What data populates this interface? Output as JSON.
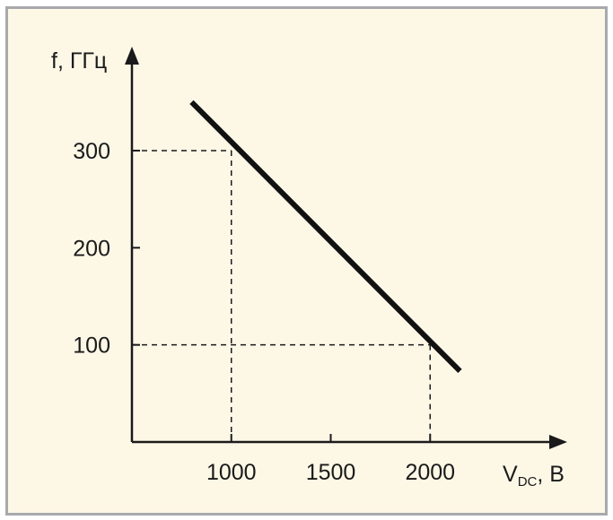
{
  "chart_data": {
    "type": "line",
    "title": "",
    "xlabel_main": "V",
    "xlabel_sub": "DC",
    "xlabel_unit": ", В",
    "ylabel": "f, ГГц",
    "x_ticks": [
      1000,
      1500,
      2000
    ],
    "y_ticks": [
      100,
      200,
      300
    ],
    "x_tick_labels": [
      "1000",
      "1500",
      "2000"
    ],
    "y_tick_labels": [
      "100",
      "200",
      "300"
    ],
    "xlim": [
      500,
      2700
    ],
    "ylim": [
      0,
      410
    ],
    "grid": false,
    "series": [
      {
        "x": [
          800,
          2150
        ],
        "y": [
          350,
          73
        ]
      }
    ],
    "reference_lines": [
      {
        "x": 1000,
        "y": 300
      },
      {
        "x": 2000,
        "y": 100
      }
    ],
    "colors": {
      "line": "#111111",
      "axis": "#1a1a1a",
      "background": "#fdf7e6",
      "frame": "#a7a9ac"
    }
  }
}
